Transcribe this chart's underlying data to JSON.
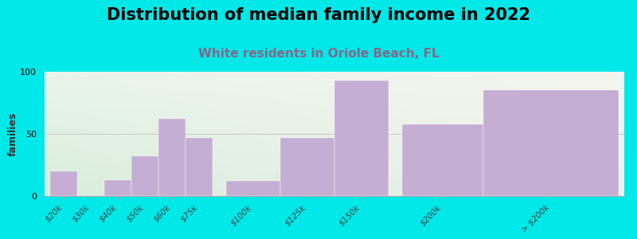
{
  "title": "Distribution of median family income in 2022",
  "subtitle": "White residents in Oriole Beach, FL",
  "ylabel": "families",
  "categories": [
    "$20k",
    "$30k",
    "$40k",
    "$50k",
    "$60k",
    "$75k",
    "$100k",
    "$125k",
    "$150k",
    "$200k",
    "> $200k"
  ],
  "values": [
    20,
    0,
    13,
    32,
    62,
    47,
    12,
    47,
    93,
    58,
    85
  ],
  "bar_color": "#c5aed4",
  "bar_edgecolor": "#c5aed4",
  "background_color": "#00e8e8",
  "plot_bg_color_topleft": "#eaf5ea",
  "plot_bg_color_topright": "#f5f5f0",
  "plot_bg_color_bottomleft": "#d8eedc",
  "plot_bg_color_bottomright": "#f0f0ea",
  "title_fontsize": 15,
  "subtitle_fontsize": 11,
  "subtitle_color": "#886688",
  "ylim": [
    0,
    100
  ],
  "yticks": [
    0,
    50,
    100
  ],
  "title_fontweight": "bold",
  "subtitle_fontweight": "bold",
  "bar_positions": [
    0,
    1,
    2,
    3,
    4,
    5,
    7,
    9,
    11,
    14,
    18
  ],
  "bar_widths": [
    1,
    1,
    1,
    1,
    1,
    1,
    2,
    2,
    2,
    3,
    5
  ]
}
